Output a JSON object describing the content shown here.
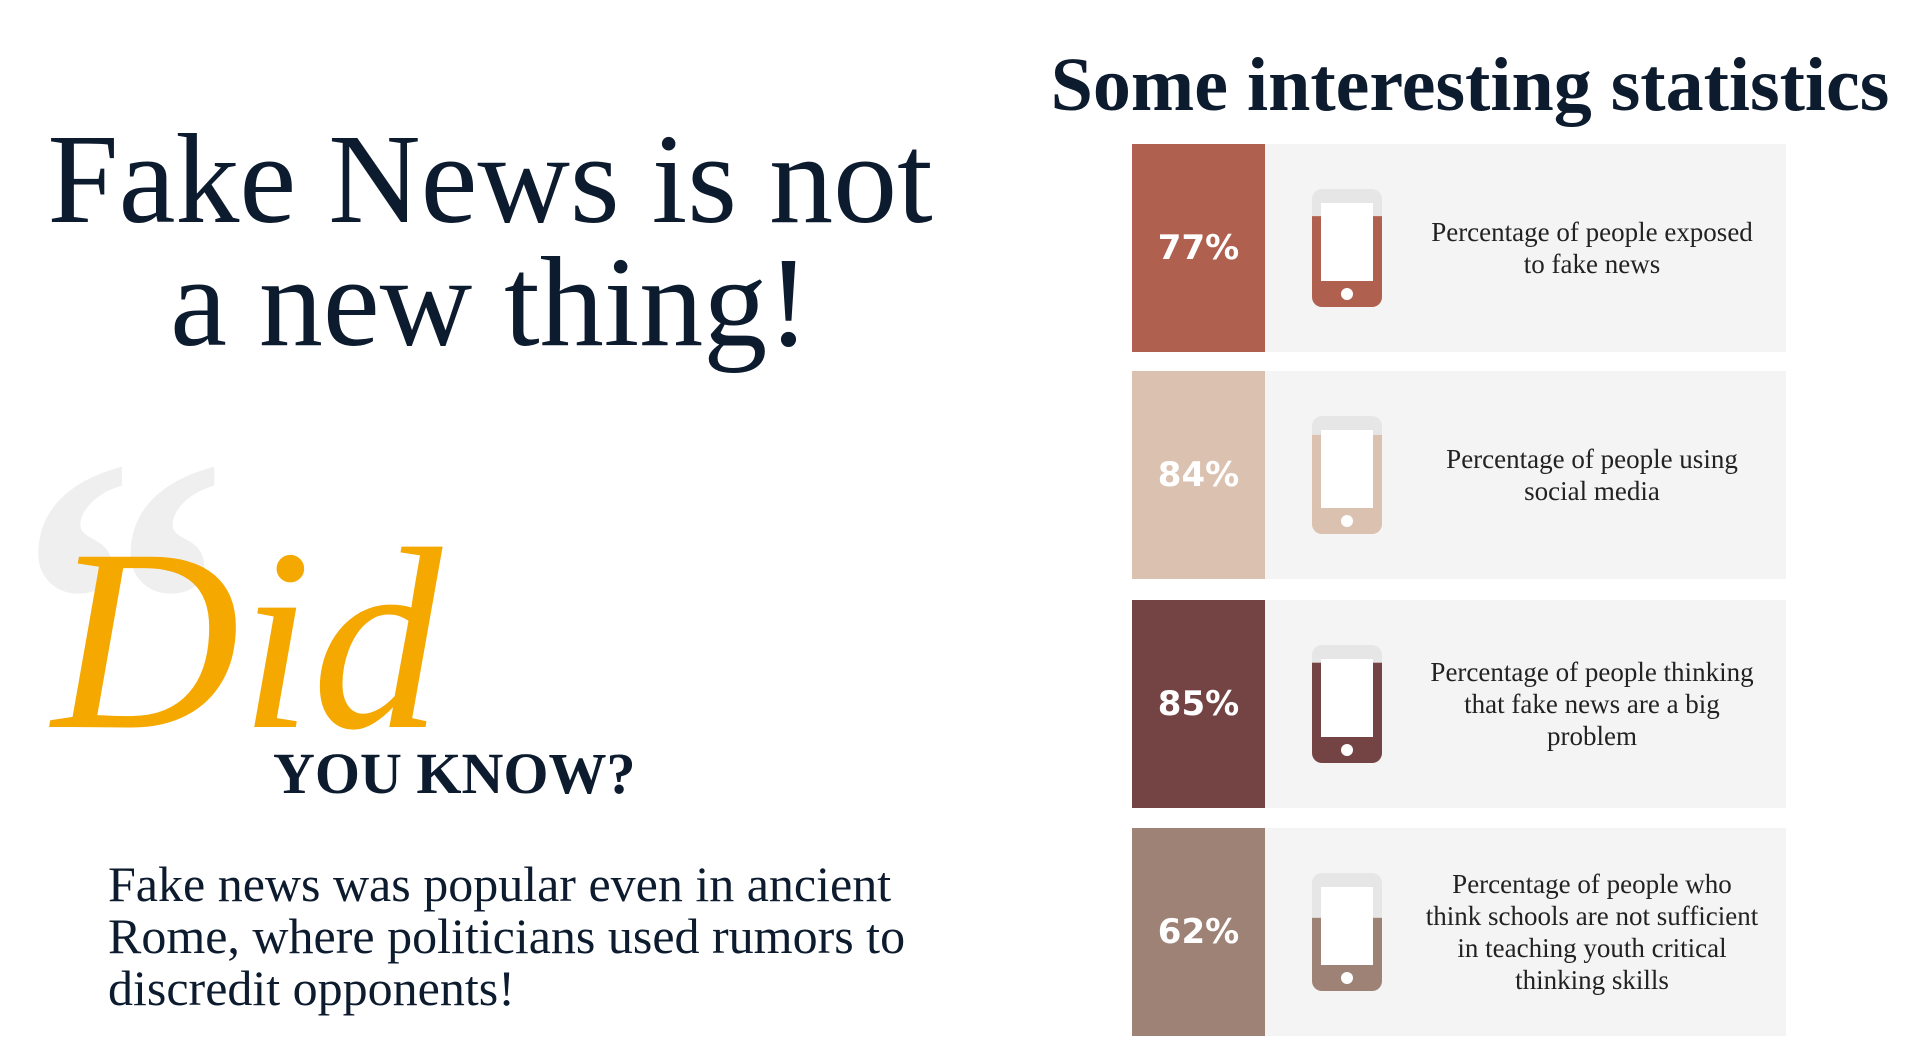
{
  "header": {
    "title": "Fake News is not a new thing!"
  },
  "did_you_know": {
    "script": "Did",
    "heading": "YOU KNOW?",
    "text": "Fake news was popular even in ancient Rome, where politicians used rumors to discredit opponents!"
  },
  "stats": {
    "title": "Some interesting statistics",
    "items": [
      {
        "value": 77,
        "value_label": "77%",
        "color": "#b0604f",
        "description": "Percentage of people exposed to fake news"
      },
      {
        "value": 84,
        "value_label": "84%",
        "color": "#dbc1b0",
        "description": "Percentage of people using social media"
      },
      {
        "value": 85,
        "value_label": "85%",
        "color": "#744343",
        "description": "Percentage of people thinking that fake news are a big problem"
      },
      {
        "value": 62,
        "value_label": "62%",
        "color": "#9e8276",
        "description": "Percentage of people who think schools are not sufficient in teaching youth critical thinking skills"
      }
    ]
  }
}
